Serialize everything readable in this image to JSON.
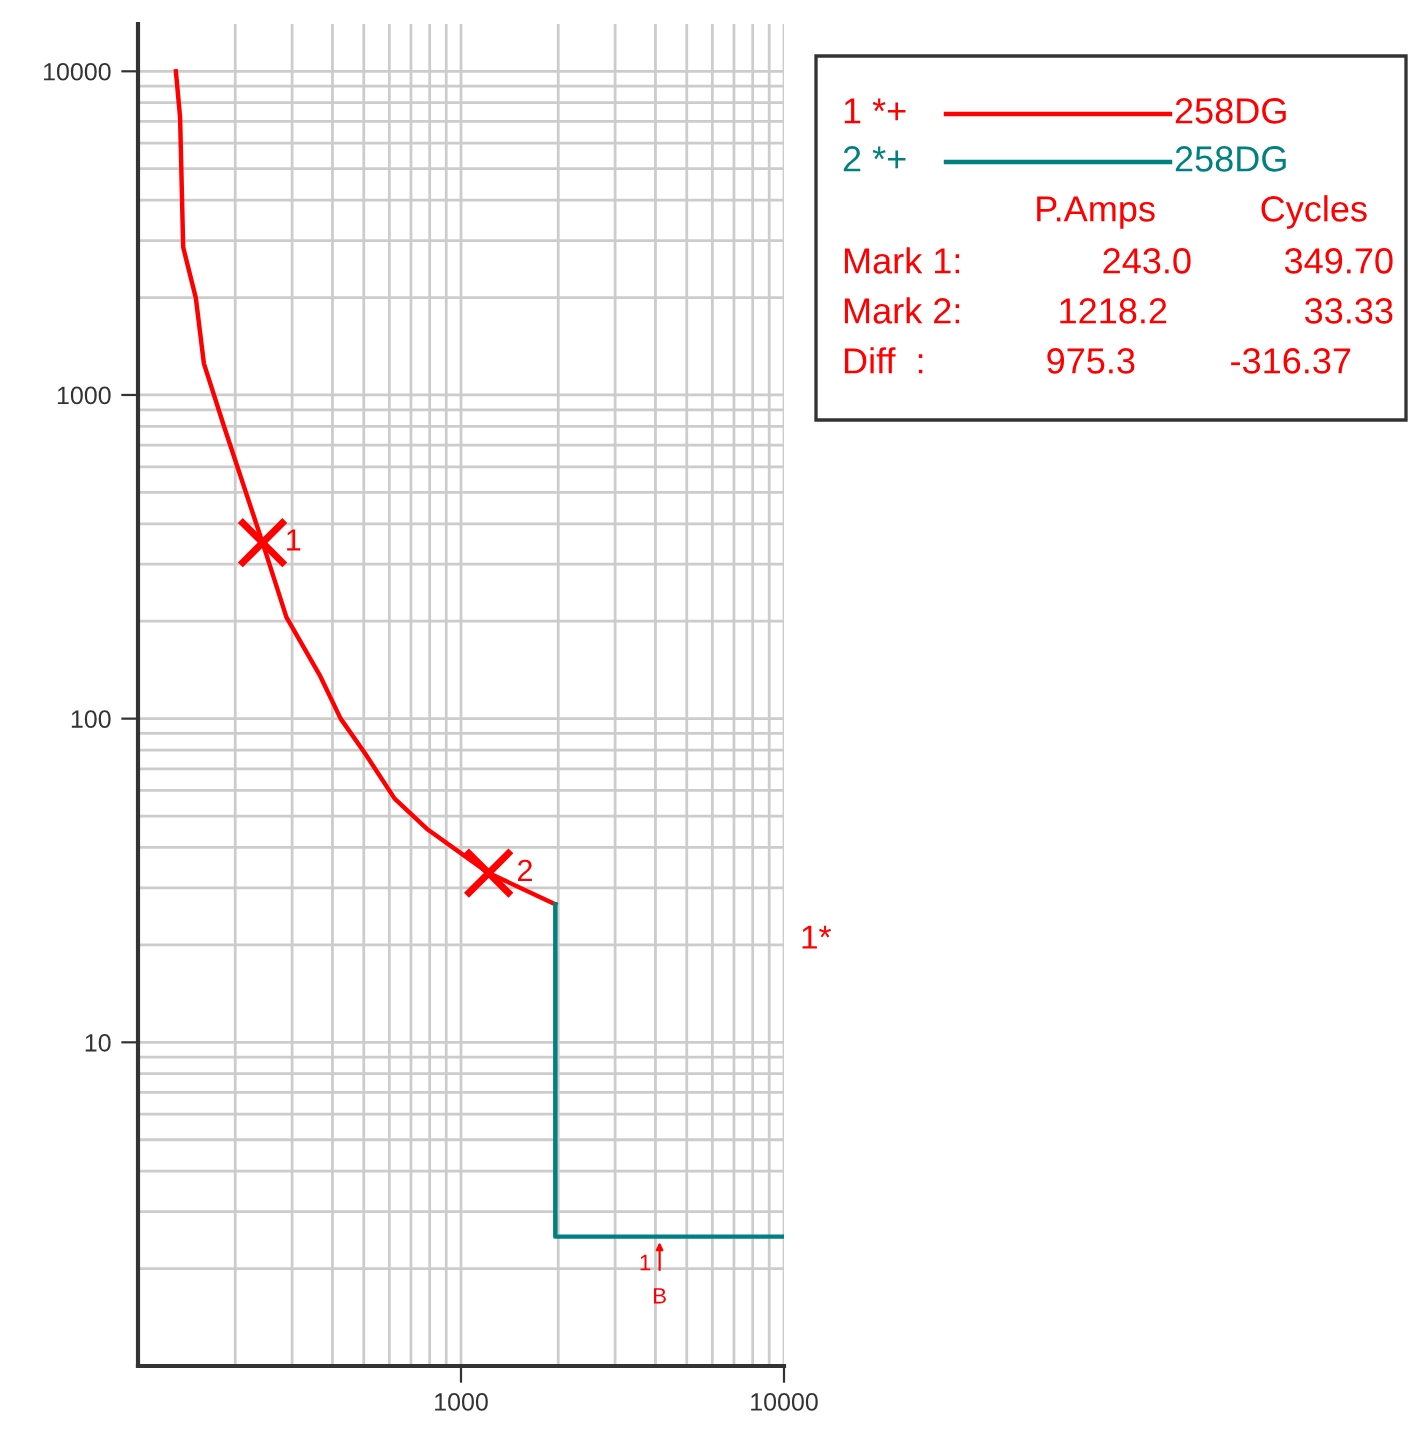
{
  "chart_data": {
    "type": "line",
    "log": "xy",
    "grid": true,
    "legend": "top right",
    "xlim": [
      100,
      10000
    ],
    "ylim": [
      1,
      14000
    ],
    "xticks": [
      1000,
      10000
    ],
    "yticks": [
      10,
      100,
      1000,
      10000
    ],
    "series": [
      {
        "name": "1 *+",
        "color": "#ff0000",
        "x": [
          131,
          135,
          138,
          151,
          160,
          185,
          243.0,
          288,
          367,
          424,
          503,
          623,
          783,
          1218.2,
          1959
        ],
        "values": [
          10000,
          7200,
          2860,
          1995,
          1250,
          795,
          349.7,
          206,
          135,
          100,
          78.5,
          56.6,
          45.7,
          33.33,
          26.7
        ]
      },
      {
        "name": "2 *+",
        "color": "#008080",
        "x": [
          1959,
          1959,
          10000
        ],
        "values": [
          26.7,
          2.51,
          2.51
        ]
      },
      {
        "type": "scatter",
        "marker": "cross",
        "color": "#ff0000",
        "x": [
          243.0,
          1218.2
        ],
        "values": [
          349.7,
          33.33
        ]
      }
    ],
    "annotations": [
      {
        "text": "1",
        "x": 243.0,
        "y": 349.7
      },
      {
        "text": "2",
        "x": 1218.2,
        "y": 33.33
      },
      {
        "text": "1",
        "x": 4120,
        "y": 2.51
      },
      {
        "text": "B",
        "x": 4120,
        "y": 2.51
      },
      "1*",
      "258DG",
      "258DG",
      "P.Amps",
      "Cycles",
      "Mark 1:",
      "243.0",
      "349.70",
      "Mark 2:",
      "1218.2",
      "33.33",
      "Diff  :",
      "975.3",
      "-316.37"
    ]
  }
}
